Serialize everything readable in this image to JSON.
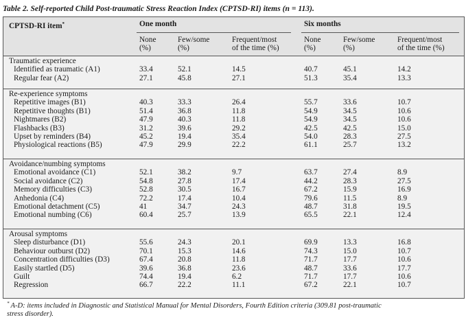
{
  "caption": "Table 2. Self-reported Child Post-traumatic Stress Reaction Index (CPTSD-RI) items (n = 113).",
  "header": {
    "item_col": "CPTSD-RI item",
    "item_col_mark": "*",
    "group1": "One month",
    "group2": "Six months",
    "none_1": "None",
    "none_2": "(%)",
    "few_1": "Few/some",
    "few_2": "(%)",
    "freq_1": "Frequent/most",
    "freq_2": "of the time (%)"
  },
  "sections": [
    {
      "title": "Traumatic experience",
      "rows": [
        {
          "label": "Identified as traumatic (A1)",
          "v": [
            "33.4",
            "52.1",
            "14.5",
            "40.7",
            "45.1",
            "14.2"
          ]
        },
        {
          "label": "Regular fear (A2)",
          "v": [
            "27.1",
            "45.8",
            "27.1",
            "51.3",
            "35.4",
            "13.3"
          ]
        }
      ]
    },
    {
      "title": "Re-experience symptoms",
      "rows": [
        {
          "label": "Repetitive images (B1)",
          "v": [
            "40.3",
            "33.3",
            "26.4",
            "55.7",
            "33.6",
            "10.7"
          ]
        },
        {
          "label": "Repetitive thoughts (B1)",
          "v": [
            "51.4",
            "36.8",
            "11.8",
            "54.9",
            "34.5",
            "10.6"
          ]
        },
        {
          "label": "Nightmares (B2)",
          "v": [
            "47.9",
            "40.3",
            "11.8",
            "54.9",
            "34.5",
            "10.6"
          ]
        },
        {
          "label": "Flashbacks (B3)",
          "v": [
            "31.2",
            "39.6",
            "29.2",
            "42.5",
            "42.5",
            "15.0"
          ]
        },
        {
          "label": "Upset by reminders (B4)",
          "v": [
            "45.2",
            "19.4",
            "35.4",
            "54.0",
            "28.3",
            "27.5"
          ]
        },
        {
          "label": "Physiological reactions (B5)",
          "v": [
            "47.9",
            "29.9",
            "22.2",
            "61.1",
            "25.7",
            "13.2"
          ]
        }
      ]
    },
    {
      "title": "Avoidance/numbing symptoms",
      "rows": [
        {
          "label": "Emotional avoidance (C1)",
          "v": [
            "52.1",
            "38.2",
            "9.7",
            "63.7",
            "27.4",
            "8.9"
          ]
        },
        {
          "label": "Social avoidance (C2)",
          "v": [
            "54.8",
            "27.8",
            "17.4",
            "44.2",
            "28.3",
            "27.5"
          ]
        },
        {
          "label": "Memory difficulties (C3)",
          "v": [
            "52.8",
            "30.5",
            "16.7",
            "67.2",
            "15.9",
            "16.9"
          ]
        },
        {
          "label": "Anhedonia (C4)",
          "v": [
            "72.2",
            "17.4",
            "10.4",
            "79.6",
            "11.5",
            "8.9"
          ]
        },
        {
          "label": "Emotional detachment (C5)",
          "v": [
            "41",
            "34.7",
            "24.3",
            "48.7",
            "31.8",
            "19.5"
          ]
        },
        {
          "label": "Emotional numbing (C6)",
          "v": [
            "60.4",
            "25.7",
            "13.9",
            "65.5",
            "22.1",
            "12.4"
          ]
        }
      ]
    },
    {
      "title": "Arousal symptoms",
      "rows": [
        {
          "label": "Sleep disturbance (D1)",
          "v": [
            "55.6",
            "24.3",
            "20.1",
            "69.9",
            "13.3",
            "16.8"
          ]
        },
        {
          "label": "Behaviour outburst (D2)",
          "v": [
            "70.1",
            "15.3",
            "14.6",
            "74.3",
            "15.0",
            "10.7"
          ]
        },
        {
          "label": "Concentration difficulties (D3)",
          "v": [
            "67.4",
            "20.8",
            "11.8",
            "71.7",
            "17.7",
            "10.6"
          ]
        },
        {
          "label": "Easily startled (D5)",
          "v": [
            "39.6",
            "36.8",
            "23.6",
            "48.7",
            "33.6",
            "17.7"
          ]
        },
        {
          "label": "Guilt",
          "v": [
            "74.4",
            "19.4",
            "6.2",
            "71.7",
            "17.7",
            "10.6"
          ]
        },
        {
          "label": "Regression",
          "v": [
            "66.7",
            "22.2",
            "11.1",
            "67.2",
            "22.1",
            "10.7"
          ]
        }
      ]
    }
  ],
  "footnote": {
    "mark": "*",
    "line1": "A-D: items included in Diagnostic and Statistical Manual for Mental Disorders, Fourth Edition criteria (309.81 post-traumatic",
    "line2": "stress disorder)."
  }
}
